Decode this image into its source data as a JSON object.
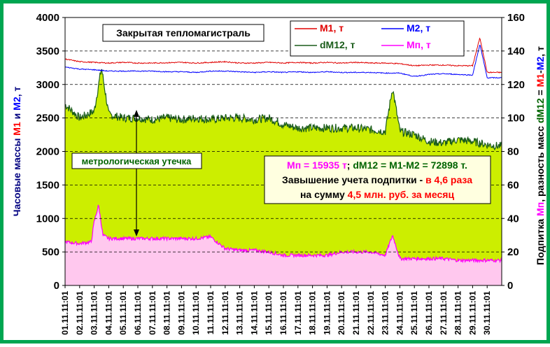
{
  "chart_data": {
    "type": "line",
    "title": "Закрытая тепломагистраль",
    "x_tick_labels": [
      "01.11.11:01",
      "02.11.11:01",
      "03.11.11:01",
      "04.11.11:01",
      "05.11.11:01",
      "06.11.11:01",
      "07.11.11:01",
      "08.11.11:01",
      "09.11.11:01",
      "10.11.11:01",
      "11.11.11:01",
      "12.11.11:01",
      "13.11.11:01",
      "14.11.11:01",
      "15.11.11:01",
      "16.11.11:01",
      "17.11.11:01",
      "18.11.11:01",
      "19.11.11:01",
      "20.11.11:01",
      "21.11.11:01",
      "22.11.11:01",
      "23.11.11:01",
      "24.11.11:01",
      "25.11.11:01",
      "26.11.11:01",
      "27.11.11:01",
      "28.11.11:01",
      "29.11.11:01",
      "30.11.11:01"
    ],
    "y_left": {
      "label_parts": [
        {
          "text": "Часовые массы ",
          "color": "#000080"
        },
        {
          "text": "М1",
          "color": "#ff0000"
        },
        {
          "text": " и ",
          "color": "#000080"
        },
        {
          "text": "М2",
          "color": "#0000ff"
        },
        {
          "text": ", т",
          "color": "#000080"
        }
      ],
      "min": 0,
      "max": 4000,
      "ticks": [
        0,
        500,
        1000,
        1500,
        2000,
        2500,
        3000,
        3500,
        4000
      ]
    },
    "y_right": {
      "label_parts": [
        {
          "text": "Подпитка ",
          "color": "#000000"
        },
        {
          "text": "Мп",
          "color": "#ff00ff"
        },
        {
          "text": ", разность масс ",
          "color": "#000000"
        },
        {
          "text": "dM12",
          "color": "#006400"
        },
        {
          "text": " = ",
          "color": "#000000"
        },
        {
          "text": "М1",
          "color": "#ff0000"
        },
        {
          "text": "-",
          "color": "#000000"
        },
        {
          "text": "М2",
          "color": "#0000ff"
        },
        {
          "text": ", т",
          "color": "#000000"
        }
      ],
      "min": 0,
      "max": 160,
      "ticks": [
        0,
        20,
        40,
        60,
        80,
        100,
        120,
        140,
        160
      ]
    },
    "grid": "horizontal-dashed",
    "legend_position": "top-right",
    "series": [
      {
        "name": "М1, т",
        "axis": "left",
        "color": "#e00000",
        "style": "line",
        "x": [
          0,
          1,
          2,
          3,
          4,
          5,
          6,
          7,
          8,
          9,
          10,
          11,
          12,
          13,
          14,
          15,
          16,
          17,
          18,
          19,
          20,
          21,
          22,
          23,
          24,
          25,
          26,
          27,
          28,
          28.5,
          29,
          30
        ],
        "values": [
          3380,
          3340,
          3330,
          3320,
          3330,
          3320,
          3320,
          3325,
          3330,
          3320,
          3330,
          3340,
          3320,
          3320,
          3330,
          3320,
          3330,
          3320,
          3330,
          3320,
          3330,
          3320,
          3320,
          3310,
          3280,
          3290,
          3290,
          3280,
          3280,
          3700,
          3180,
          3180
        ]
      },
      {
        "name": "М2, т",
        "axis": "left",
        "color": "#0000ff",
        "style": "line",
        "x": [
          0,
          1,
          2,
          3,
          4,
          5,
          6,
          7,
          8,
          9,
          10,
          11,
          12,
          13,
          14,
          15,
          16,
          17,
          18,
          19,
          20,
          21,
          22,
          23,
          24,
          25,
          26,
          27,
          28,
          28.5,
          29,
          30
        ],
        "values": [
          3260,
          3230,
          3220,
          3200,
          3200,
          3200,
          3200,
          3190,
          3190,
          3180,
          3200,
          3200,
          3190,
          3180,
          3190,
          3180,
          3190,
          3180,
          3190,
          3180,
          3180,
          3180,
          3170,
          3170,
          3120,
          3150,
          3160,
          3150,
          3140,
          3600,
          3100,
          3100
        ]
      },
      {
        "name": "dM12, т",
        "axis": "right",
        "color": "#1a5c1a",
        "fill": "#ccee00",
        "style": "area",
        "x": [
          0,
          1,
          2,
          2.5,
          3,
          4,
          5,
          6,
          7,
          8,
          9,
          10,
          11,
          12,
          13,
          14,
          15,
          16,
          17,
          18,
          19,
          20,
          21,
          22,
          22.5,
          23,
          24,
          25,
          26,
          27,
          28,
          29,
          30
        ],
        "values": [
          108,
          100,
          104,
          130,
          102,
          100,
          100,
          99,
          100,
          99,
          100,
          99,
          100,
          100,
          99,
          100,
          96,
          94,
          94,
          94,
          94,
          94,
          93,
          92,
          118,
          92,
          90,
          86,
          85,
          87,
          86,
          84,
          83
        ]
      },
      {
        "name": "Мп, т",
        "axis": "right",
        "color": "#ff00ff",
        "fill": "#ffc8ee",
        "style": "area",
        "x": [
          0,
          1,
          1.8,
          2,
          2.3,
          2.6,
          3,
          4,
          5,
          6,
          7,
          8,
          9,
          10,
          11,
          12,
          13,
          14,
          15,
          16,
          17,
          18,
          19,
          20,
          21,
          22,
          22.5,
          23,
          24,
          25,
          26,
          27,
          28,
          29,
          30
        ],
        "values": [
          26,
          25,
          26,
          38,
          48,
          30,
          28,
          28,
          28,
          28,
          28,
          28,
          28,
          29,
          22,
          21,
          21,
          20,
          18,
          18,
          18,
          18,
          20,
          20,
          20,
          18,
          30,
          16,
          16,
          16,
          16,
          15,
          15,
          15,
          15
        ]
      }
    ],
    "annotations": {
      "leak_label": "метрологическая утечка",
      "summary_line1_parts": [
        {
          "text": "Мп = 15935 т",
          "color": "#ff00ff"
        },
        {
          "text": "; ",
          "color": "#000000"
        },
        {
          "text": "dM12 = М1-М2 = 72898 т.",
          "color": "#006400"
        }
      ],
      "summary_line2_parts": [
        {
          "text": "Завышение учета подпитки - ",
          "color": "#000000"
        },
        {
          "text": "в 4,6 раза",
          "color": "#ff0000"
        }
      ],
      "summary_line3_parts": [
        {
          "text": "на сумму ",
          "color": "#000000"
        },
        {
          "text": "4,5 млн. руб. за месяц",
          "color": "#ff0000"
        }
      ]
    }
  }
}
